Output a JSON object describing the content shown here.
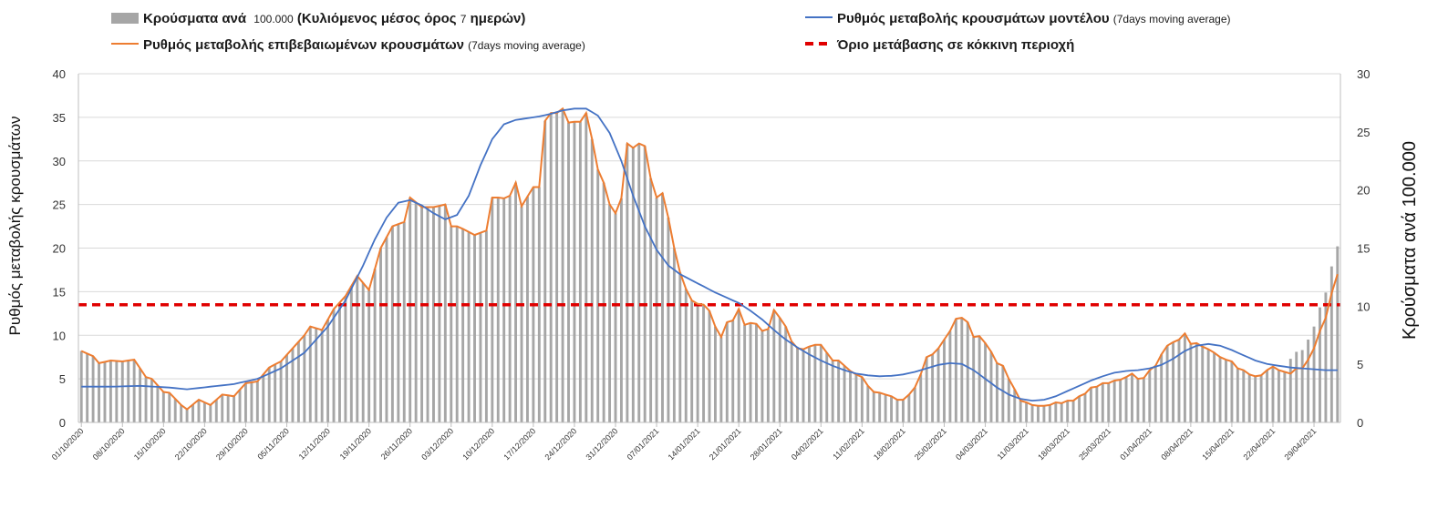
{
  "chart_data": {
    "type": "bar+line",
    "title": "",
    "legend": [
      {
        "id": "bars",
        "label": "Κρούσματα ανά",
        "suffix_small": "100.000",
        "label2": " (Κυλιόμενος μέσος όρος ",
        "suffix2_small": "7",
        "label3": " ημερών)",
        "color": "#a6a6a6",
        "kind": "bar"
      },
      {
        "id": "model",
        "label": "Ρυθμός μεταβολής κρουσμάτων μοντέλου",
        "suffix_small": " (7days moving average)",
        "color": "#4472c4",
        "kind": "line"
      },
      {
        "id": "confirmed",
        "label": "Ρυθμός μεταβολής επιβεβαιωμένων κρουσμάτων",
        "suffix_small": " (7days moving average)",
        "color": "#ed7d31",
        "kind": "line"
      },
      {
        "id": "threshold",
        "label": "Όριο μετάβασης σε κόκκινη περιοχή",
        "suffix_small": "",
        "color": "#e00000",
        "kind": "dashed"
      }
    ],
    "y_left": {
      "label": "Ρυθμός μεταβολής κρουσμάτων",
      "min": 0,
      "max": 40,
      "ticks": [
        0,
        5,
        10,
        15,
        20,
        25,
        30,
        35,
        40
      ]
    },
    "y_right": {
      "label": "Κρούσματα ανά 100.000",
      "min": 0,
      "max": 30,
      "ticks": [
        0,
        5,
        10,
        15,
        20,
        25,
        30
      ]
    },
    "x_tick_labels": [
      "01/10/2020",
      "08/10/2020",
      "15/10/2020",
      "22/10/2020",
      "29/10/2020",
      "05/11/2020",
      "12/11/2020",
      "19/11/2020",
      "26/11/2020",
      "03/12/2020",
      "10/12/2020",
      "17/12/2020",
      "24/12/2020",
      "31/12/2020",
      "07/01/2021",
      "14/01/2021",
      "21/01/2021",
      "28/01/2021",
      "04/02/2021",
      "11/02/2021",
      "18/02/2021",
      "25/02/2021",
      "04/03/2021",
      "11/03/2021",
      "18/03/2021",
      "25/03/2021",
      "01/04/2021",
      "08/04/2021",
      "15/04/2021",
      "22/04/2021",
      "29/04/2021"
    ],
    "days": 215,
    "threshold_value_left_axis": 13.5,
    "key_points_confirmed": [
      [
        0,
        8.2
      ],
      [
        2,
        7.6
      ],
      [
        3,
        6.8
      ],
      [
        5,
        7.1
      ],
      [
        7,
        7.0
      ],
      [
        9,
        7.2
      ],
      [
        11,
        5.2
      ],
      [
        12,
        5.0
      ],
      [
        14,
        3.5
      ],
      [
        15,
        3.4
      ],
      [
        17,
        2.0
      ],
      [
        18,
        1.5
      ],
      [
        20,
        2.6
      ],
      [
        22,
        2.0
      ],
      [
        24,
        3.2
      ],
      [
        26,
        3.0
      ],
      [
        28,
        4.5
      ],
      [
        30,
        4.7
      ],
      [
        32,
        6.3
      ],
      [
        34,
        7.0
      ],
      [
        36,
        8.5
      ],
      [
        38,
        10.0
      ],
      [
        39,
        11.0
      ],
      [
        41,
        10.6
      ],
      [
        43,
        13.0
      ],
      [
        45,
        14.5
      ],
      [
        47,
        16.8
      ],
      [
        49,
        15.2
      ],
      [
        51,
        20.0
      ],
      [
        53,
        22.5
      ],
      [
        55,
        23.0
      ],
      [
        56,
        25.8
      ],
      [
        58,
        24.7
      ],
      [
        60,
        24.7
      ],
      [
        62,
        25.0
      ],
      [
        63,
        22.5
      ],
      [
        64,
        22.5
      ],
      [
        65,
        22.2
      ],
      [
        67,
        21.5
      ],
      [
        69,
        22.0
      ],
      [
        70,
        25.8
      ],
      [
        71,
        25.8
      ],
      [
        72,
        25.7
      ],
      [
        73,
        26.0
      ],
      [
        74,
        27.5
      ],
      [
        75,
        24.8
      ],
      [
        77,
        27.0
      ],
      [
        78,
        27.0
      ],
      [
        79,
        34.6
      ],
      [
        80,
        35.5
      ],
      [
        81,
        35.5
      ],
      [
        82,
        36.0
      ],
      [
        83,
        34.4
      ],
      [
        84,
        34.5
      ],
      [
        85,
        34.5
      ],
      [
        86,
        35.5
      ],
      [
        87,
        32.5
      ],
      [
        88,
        29.0
      ],
      [
        89,
        27.5
      ],
      [
        90,
        25.0
      ],
      [
        91,
        24.0
      ],
      [
        92,
        25.7
      ],
      [
        93,
        32.0
      ],
      [
        94,
        31.5
      ],
      [
        95,
        32.0
      ],
      [
        96,
        31.7
      ],
      [
        97,
        28.0
      ],
      [
        98,
        25.8
      ],
      [
        99,
        26.3
      ],
      [
        100,
        23.5
      ],
      [
        101,
        20.0
      ],
      [
        102,
        17.2
      ],
      [
        103,
        15.3
      ],
      [
        104,
        14.0
      ],
      [
        105,
        13.6
      ],
      [
        106,
        13.5
      ],
      [
        107,
        12.8
      ],
      [
        108,
        11.0
      ],
      [
        109,
        9.8
      ],
      [
        110,
        11.5
      ],
      [
        111,
        11.7
      ],
      [
        112,
        13.0
      ],
      [
        113,
        11.2
      ],
      [
        114,
        11.4
      ],
      [
        115,
        11.3
      ],
      [
        116,
        10.5
      ],
      [
        117,
        10.7
      ],
      [
        118,
        12.9
      ],
      [
        119,
        12.0
      ],
      [
        120,
        11.0
      ],
      [
        121,
        9.3
      ],
      [
        122,
        8.5
      ],
      [
        123,
        8.4
      ],
      [
        124,
        8.7
      ],
      [
        125,
        8.9
      ],
      [
        126,
        8.9
      ],
      [
        127,
        8.0
      ],
      [
        128,
        7.1
      ],
      [
        129,
        7.1
      ],
      [
        130,
        6.5
      ],
      [
        131,
        5.9
      ],
      [
        132,
        5.5
      ],
      [
        133,
        5.2
      ],
      [
        134,
        4.2
      ],
      [
        135,
        3.5
      ],
      [
        136,
        3.4
      ],
      [
        137,
        3.2
      ],
      [
        138,
        3.0
      ],
      [
        139,
        2.6
      ],
      [
        140,
        2.6
      ],
      [
        141,
        3.2
      ],
      [
        142,
        4.0
      ],
      [
        143,
        5.5
      ],
      [
        144,
        7.5
      ],
      [
        145,
        7.8
      ],
      [
        146,
        8.5
      ],
      [
        147,
        9.5
      ],
      [
        148,
        10.5
      ],
      [
        149,
        11.9
      ],
      [
        150,
        12.0
      ],
      [
        151,
        11.5
      ],
      [
        152,
        9.8
      ],
      [
        153,
        9.9
      ],
      [
        154,
        9.1
      ],
      [
        155,
        8.1
      ],
      [
        156,
        6.8
      ],
      [
        157,
        6.5
      ],
      [
        158,
        5.0
      ],
      [
        159,
        3.8
      ],
      [
        160,
        2.5
      ],
      [
        161,
        2.3
      ],
      [
        162,
        2.0
      ],
      [
        163,
        1.9
      ],
      [
        164,
        1.9
      ],
      [
        165,
        2.0
      ],
      [
        166,
        2.3
      ],
      [
        167,
        2.2
      ],
      [
        168,
        2.5
      ],
      [
        169,
        2.5
      ],
      [
        170,
        3.0
      ],
      [
        171,
        3.3
      ],
      [
        172,
        4.0
      ],
      [
        173,
        4.1
      ],
      [
        174,
        4.5
      ],
      [
        175,
        4.5
      ],
      [
        176,
        4.8
      ],
      [
        177,
        4.9
      ],
      [
        178,
        5.2
      ],
      [
        179,
        5.6
      ],
      [
        180,
        5.0
      ],
      [
        181,
        5.1
      ],
      [
        182,
        6.0
      ],
      [
        183,
        6.5
      ],
      [
        184,
        7.8
      ],
      [
        185,
        8.8
      ],
      [
        186,
        9.2
      ],
      [
        187,
        9.5
      ],
      [
        188,
        10.2
      ],
      [
        189,
        9.0
      ],
      [
        190,
        9.1
      ],
      [
        191,
        8.7
      ],
      [
        192,
        8.4
      ],
      [
        193,
        8.0
      ],
      [
        194,
        7.5
      ],
      [
        195,
        7.2
      ],
      [
        196,
        7.0
      ],
      [
        197,
        6.2
      ],
      [
        198,
        6.0
      ],
      [
        199,
        5.5
      ],
      [
        200,
        5.3
      ],
      [
        201,
        5.4
      ],
      [
        202,
        6.0
      ],
      [
        203,
        6.4
      ],
      [
        204,
        6.0
      ],
      [
        205,
        5.8
      ],
      [
        206,
        5.6
      ],
      [
        207,
        6.2
      ],
      [
        208,
        6.2
      ],
      [
        209,
        7.2
      ],
      [
        210,
        8.5
      ],
      [
        211,
        10.5
      ],
      [
        212,
        12.0
      ],
      [
        213,
        14.8
      ],
      [
        214,
        17.0
      ]
    ],
    "key_points_model": [
      [
        0,
        4.1
      ],
      [
        5,
        4.1
      ],
      [
        10,
        4.2
      ],
      [
        15,
        4.0
      ],
      [
        18,
        3.8
      ],
      [
        22,
        4.1
      ],
      [
        26,
        4.4
      ],
      [
        30,
        5.0
      ],
      [
        34,
        6.2
      ],
      [
        38,
        8.0
      ],
      [
        42,
        11.0
      ],
      [
        45,
        14.0
      ],
      [
        48,
        18.0
      ],
      [
        50,
        21.0
      ],
      [
        52,
        23.5
      ],
      [
        54,
        25.2
      ],
      [
        56,
        25.5
      ],
      [
        58,
        24.9
      ],
      [
        60,
        24.0
      ],
      [
        62,
        23.3
      ],
      [
        64,
        23.8
      ],
      [
        66,
        26.0
      ],
      [
        68,
        29.5
      ],
      [
        70,
        32.5
      ],
      [
        72,
        34.2
      ],
      [
        74,
        34.7
      ],
      [
        76,
        34.9
      ],
      [
        78,
        35.1
      ],
      [
        80,
        35.4
      ],
      [
        82,
        35.8
      ],
      [
        84,
        36.0
      ],
      [
        86,
        36.0
      ],
      [
        88,
        35.2
      ],
      [
        90,
        33.2
      ],
      [
        92,
        30.0
      ],
      [
        94,
        26.0
      ],
      [
        96,
        22.5
      ],
      [
        98,
        19.8
      ],
      [
        100,
        18.0
      ],
      [
        102,
        17.0
      ],
      [
        104,
        16.3
      ],
      [
        106,
        15.6
      ],
      [
        108,
        14.9
      ],
      [
        110,
        14.3
      ],
      [
        112,
        13.7
      ],
      [
        114,
        12.8
      ],
      [
        116,
        11.8
      ],
      [
        118,
        10.6
      ],
      [
        120,
        9.5
      ],
      [
        122,
        8.6
      ],
      [
        124,
        7.8
      ],
      [
        126,
        7.1
      ],
      [
        128,
        6.5
      ],
      [
        130,
        6.0
      ],
      [
        132,
        5.6
      ],
      [
        134,
        5.4
      ],
      [
        136,
        5.3
      ],
      [
        138,
        5.35
      ],
      [
        140,
        5.5
      ],
      [
        142,
        5.8
      ],
      [
        144,
        6.2
      ],
      [
        146,
        6.6
      ],
      [
        148,
        6.8
      ],
      [
        150,
        6.7
      ],
      [
        152,
        6.0
      ],
      [
        154,
        5.0
      ],
      [
        156,
        4.0
      ],
      [
        158,
        3.2
      ],
      [
        160,
        2.7
      ],
      [
        162,
        2.5
      ],
      [
        164,
        2.6
      ],
      [
        166,
        3.0
      ],
      [
        168,
        3.6
      ],
      [
        170,
        4.2
      ],
      [
        172,
        4.8
      ],
      [
        174,
        5.3
      ],
      [
        176,
        5.7
      ],
      [
        178,
        5.9
      ],
      [
        180,
        6.0
      ],
      [
        182,
        6.2
      ],
      [
        184,
        6.6
      ],
      [
        186,
        7.3
      ],
      [
        188,
        8.2
      ],
      [
        190,
        8.8
      ],
      [
        192,
        9.0
      ],
      [
        194,
        8.8
      ],
      [
        196,
        8.3
      ],
      [
        198,
        7.7
      ],
      [
        200,
        7.1
      ],
      [
        202,
        6.7
      ],
      [
        204,
        6.5
      ],
      [
        206,
        6.3
      ],
      [
        208,
        6.2
      ],
      [
        210,
        6.1
      ],
      [
        212,
        6.0
      ],
      [
        214,
        6.0
      ]
    ],
    "key_points_model_tail": [
      [
        146,
        6.6
      ],
      [
        150,
        6.7
      ],
      [
        154,
        5.0
      ]
    ],
    "bars_scale_note": "bar values in right-axis units (cases per 100.000)"
  }
}
